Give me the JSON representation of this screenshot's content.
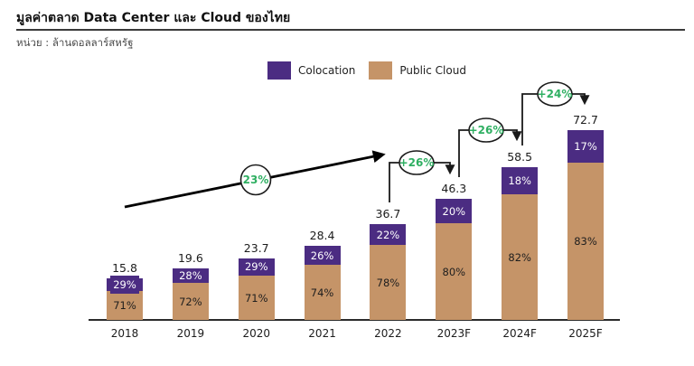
{
  "header": {
    "title": "มูลค่าตลาด Data Center และ Cloud ของไทย",
    "unit_note": "หน่วย : ล้านดอลลาร์สหรัฐ"
  },
  "chart_data": {
    "type": "bar",
    "stacked": true,
    "title": "มูลค่าตลาด Data Center และ Cloud ของไทย",
    "unit_label": "ล้านดอลลาร์สหรัฐ",
    "categories": [
      "2018",
      "2019",
      "2020",
      "2021",
      "2022",
      "2023F",
      "2024F",
      "2025F"
    ],
    "totals": [
      15.8,
      19.6,
      23.7,
      28.4,
      36.7,
      46.3,
      58.5,
      72.7
    ],
    "series": [
      {
        "name": "Colocation",
        "color": "#4B2C82",
        "percent": [
          29,
          28,
          29,
          26,
          22,
          20,
          18,
          17
        ]
      },
      {
        "name": "Public Cloud",
        "color": "#C59468",
        "percent": [
          71,
          72,
          71,
          74,
          78,
          80,
          82,
          83
        ]
      }
    ],
    "growth_annotations": {
      "trend_cagr": "23%",
      "yoy": [
        "+26%",
        "+26%",
        "+24%"
      ]
    },
    "legend_position": "top",
    "axis": {
      "x_visible": true,
      "y_visible": false,
      "ylim": [
        0,
        75
      ]
    }
  },
  "colors": {
    "annotation_green": "#2FAF62",
    "axis": "#2b2b2b",
    "colocation": "#4B2C82",
    "public_cloud": "#C59468"
  }
}
